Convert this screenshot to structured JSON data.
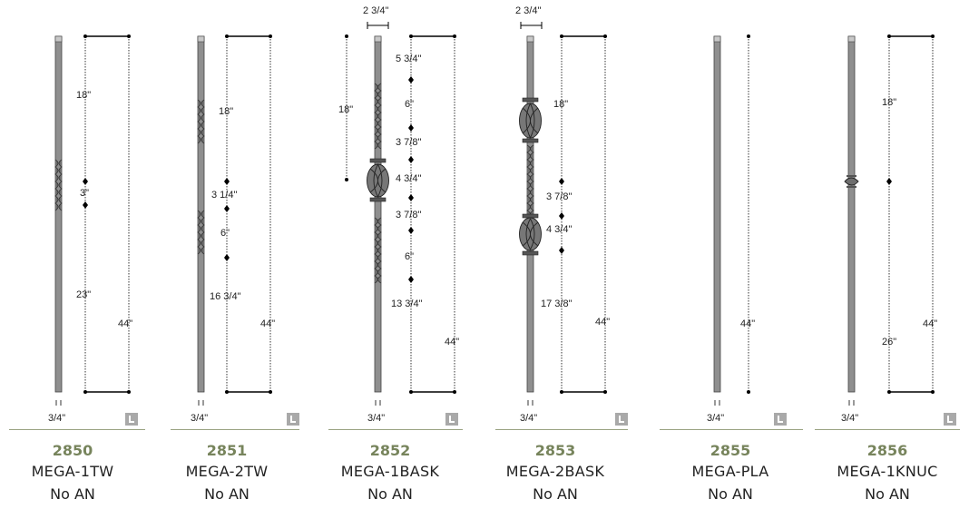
{
  "colors": {
    "code": "#77845c",
    "baseline": "#9aa382",
    "badge": "#a9a9a9"
  },
  "badge_icon": "L-icon",
  "products": [
    {
      "code": "2850",
      "name": "MEGA-1TW",
      "sub": "No AN",
      "width_label": "3/4\"",
      "dims": [
        "18\"",
        "3\"",
        "23\"",
        "44\""
      ]
    },
    {
      "code": "2851",
      "name": "MEGA-2TW",
      "sub": "No AN",
      "width_label": "3/4\"",
      "dims": [
        "18\"",
        "3 1/4\"",
        "6\"",
        "16 3/4\"",
        "44\""
      ]
    },
    {
      "code": "2852",
      "name": "MEGA-1BASK",
      "sub": "No AN",
      "width_label": "3/4\"",
      "top_label": "2 3/4\"",
      "dims": [
        "18\"",
        "5 3/4\"",
        "6\"",
        "3 7/8\"",
        "4 3/4\"",
        "3 7/8\"",
        "6\"",
        "13 3/4\"",
        "44\""
      ]
    },
    {
      "code": "2853",
      "name": "MEGA-2BASK",
      "sub": "No AN",
      "width_label": "3/4\"",
      "top_label": "2 3/4\"",
      "dims": [
        "18\"",
        "3 7/8\"",
        "4 3/4\"",
        "17 3/8\"",
        "44\""
      ]
    },
    {
      "code": "2855",
      "name": "MEGA-PLA",
      "sub": "No AN",
      "width_label": "3/4\"",
      "dims": [
        "44\""
      ]
    },
    {
      "code": "2856",
      "name": "MEGA-1KNUC",
      "sub": "No AN",
      "width_label": "3/4\"",
      "dims": [
        "18\"",
        "26\"",
        "44\""
      ]
    }
  ]
}
